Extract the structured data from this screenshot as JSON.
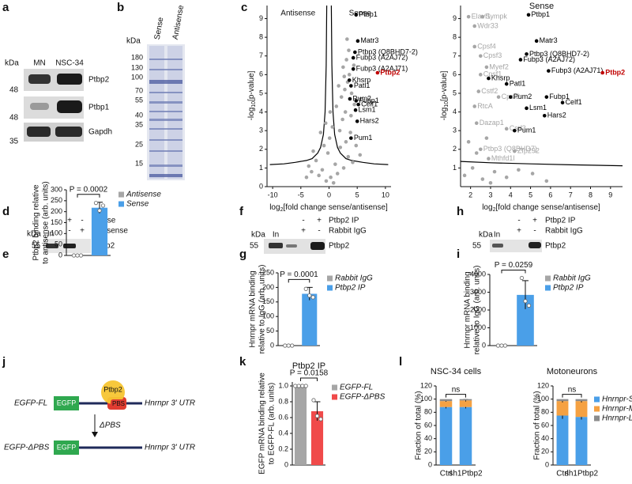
{
  "figure": {
    "letters": [
      "a",
      "b",
      "c",
      "d",
      "e",
      "f",
      "g",
      "h",
      "i",
      "j",
      "k",
      "l"
    ],
    "blot_a": {
      "kda": "kDa",
      "lanes": [
        "MN",
        "NSC-34"
      ],
      "bands": [
        "Ptbp2",
        "Ptbp1",
        "Gapdh"
      ],
      "markers": [
        "48",
        "48",
        "35"
      ]
    },
    "gel_b": {
      "kda": "kDa",
      "lanes": [
        "Sense",
        "Antisense"
      ],
      "markers": [
        "180",
        "130",
        "100",
        "70",
        "55",
        "40",
        "35",
        "25",
        "15"
      ]
    },
    "blot_d": {
      "kda": "kDa",
      "input": "In",
      "rows": [
        {
          "signs": [
            "+",
            "-"
          ],
          "label": "Sense"
        },
        {
          "signs": [
            "-",
            "+"
          ],
          "label": "Antisense"
        }
      ],
      "marker": "55",
      "band": "Ptbp2"
    },
    "blot_f": {
      "kda": "kDa",
      "input": "In",
      "rows": [
        {
          "signs": [
            "-",
            "+"
          ],
          "label": "Ptbp2 IP"
        },
        {
          "signs": [
            "+",
            "-"
          ],
          "label": "Rabbit IgG"
        }
      ],
      "marker": "55",
      "band": "Ptbp2"
    },
    "blot_h": {
      "kda": "kDa",
      "input": "In",
      "rows": [
        {
          "signs": [
            "-",
            "+"
          ],
          "label": "Ptbp2 IP"
        },
        {
          "signs": [
            "+",
            "-"
          ],
          "label": "Rabbit IgG"
        }
      ],
      "marker": "55",
      "band": "Ptbp2"
    },
    "diagram_j": {
      "full": "EGFP-FL",
      "egfp": "EGFP",
      "protein": "Ptbp2",
      "site": "PBS",
      "utr": "Hnrnpr 3' UTR",
      "deletion": "ΔPBS",
      "mutant": "EGFP-ΔPBS"
    }
  },
  "chart_data": [
    {
      "type": "scatter",
      "side_labels": [
        "Antisense",
        "Sense"
      ],
      "xlabel": [
        "log",
        "2",
        "[fold change sense/antisense]"
      ],
      "ylabel": [
        "-log",
        "10",
        "[p-value]"
      ],
      "xlim": [
        -11,
        11
      ],
      "ylim": [
        0,
        9.7
      ],
      "xticks": [
        -10,
        -5,
        0,
        5,
        10
      ],
      "yticks": [
        0,
        1,
        2,
        3,
        4,
        5,
        6,
        7,
        8,
        9
      ],
      "series": [
        {
          "color": "#a6a6a6",
          "x": [
            -0.5,
            0.3,
            -1.2,
            1.1,
            0.8,
            -0.2,
            1.5,
            2.0,
            -2.3,
            -1.8,
            2.6,
            3.0,
            -3.1,
            0.1,
            0.6,
            -0.9,
            1.9,
            2.4,
            3.4,
            -2.8,
            -3.6,
            3.8,
            4.2,
            -4.0,
            0.2,
            -0.6,
            1.3,
            2.2,
            2.8,
            3.3,
            3.6,
            4.0,
            4.5,
            2.5,
            3.1,
            3.9,
            2.9,
            3.5,
            4.4,
            3.2,
            2.7,
            4.8,
            5.5,
            -1.5,
            1.7
          ],
          "values": [
            0.3,
            0.5,
            0.9,
            1.2,
            0.2,
            1.8,
            0.7,
            2.1,
            1.4,
            0.6,
            1.0,
            2.4,
            0.8,
            2.6,
            3.2,
            2.2,
            3.0,
            3.6,
            1.6,
            1.9,
            1.1,
            2.9,
            1.3,
            0.5,
            4.0,
            3.4,
            4.3,
            4.8,
            5.2,
            5.6,
            6.0,
            5.0,
            4.4,
            6.4,
            6.8,
            3.8,
            4.0,
            7.3,
            6.5,
            7.9,
            5.9,
            2.2,
            1.7,
            2.9,
            5.4
          ]
        },
        {
          "color": "#000000",
          "x": [
            4.8,
            5.1,
            4.6,
            4.3,
            4.3,
            3.6,
            3.9,
            3.7,
            4.8,
            5.2,
            4.7,
            5.0,
            3.9
          ],
          "values": [
            9.2,
            7.8,
            7.2,
            6.9,
            6.3,
            5.7,
            5.4,
            4.7,
            4.6,
            4.4,
            4.1,
            3.5,
            2.6
          ],
          "labels": [
            "Ptbp1",
            "Matr3",
            "Ptbp3 (Q8BHD7-2)",
            "Fubp3 (A2AJ72)",
            "Fubp3 (A2AJ71)",
            "Khsrp",
            "Patl1",
            "Pum2",
            "Fubp1",
            "Celf1",
            "Lsm1",
            "Hars2",
            "Pum1"
          ]
        },
        {
          "color": "#c00000",
          "x": [
            8.6
          ],
          "values": [
            6.1
          ],
          "labels": [
            "Ptbp2"
          ]
        }
      ],
      "curves": [
        {
          "color": "#000000",
          "x": [
            -10.5,
            -8,
            -6,
            -4,
            -3,
            -2,
            -1.5,
            -1,
            -0.7,
            -0.5,
            -0.4
          ],
          "values": [
            1.18,
            1.22,
            1.3,
            1.4,
            1.5,
            1.8,
            2.1,
            2.8,
            4.0,
            6.5,
            9.7
          ]
        },
        {
          "color": "#000000",
          "x": [
            0.4,
            0.5,
            0.7,
            1,
            1.5,
            2,
            3,
            4,
            6,
            8,
            10.5
          ],
          "values": [
            9.7,
            6.5,
            4.0,
            2.8,
            2.1,
            1.8,
            1.5,
            1.4,
            1.3,
            1.22,
            1.18
          ]
        }
      ]
    },
    {
      "type": "scatter",
      "title": "Sense",
      "xlabel": [
        "log",
        "2",
        "[fold change sense/antisense]"
      ],
      "ylabel": [
        "-log",
        "10",
        "[p-value]"
      ],
      "xlim": [
        1.5,
        9.6
      ],
      "ylim": [
        0,
        9.7
      ],
      "xticks": [
        2,
        3,
        4,
        5,
        6,
        7,
        8,
        9
      ],
      "yticks": [
        1,
        2,
        3,
        4,
        5,
        6,
        7,
        8,
        9
      ],
      "series": [
        {
          "color": "#a6a6a6",
          "x": [
            1.7,
            2.1,
            2.6,
            3.2,
            3.8,
            4.4,
            5.1,
            5.8,
            2.3,
            3.0,
            1.9,
            2.8
          ],
          "values": [
            0.6,
            1.0,
            0.4,
            0.8,
            0.5,
            0.9,
            0.7,
            0.3,
            1.8,
            0.2,
            2.4,
            2.6
          ]
        },
        {
          "color": "#a6a6a6",
          "x": [
            1.9,
            2.6,
            2.2,
            2.2,
            2.5,
            2.8,
            2.5,
            2.4,
            3.4,
            2.2,
            2.3,
            3.8,
            2.5,
            4.2,
            2.9
          ],
          "values": [
            9.1,
            9.1,
            8.6,
            7.5,
            7.0,
            6.4,
            6.0,
            5.1,
            4.8,
            4.3,
            3.4,
            3.1,
            2.0,
            1.9,
            1.5
          ],
          "labels": [
            "Elavl1",
            "Sympk",
            "Wdr33",
            "Cpsf4",
            "Cpsf3",
            "Myef2",
            "Cpsf1",
            "Cstf2",
            "Cpsf2",
            "RtcA",
            "Dazap1",
            "Cstf3",
            "Ptbp3 (Q8BHD7)",
            "Zfp292",
            "Mthfd1l"
          ]
        },
        {
          "color": "#000000",
          "x": [
            4.9,
            5.3,
            4.8,
            4.5,
            5.9,
            2.9,
            3.8,
            4.0,
            5.8,
            6.6,
            4.8,
            5.7,
            4.2
          ],
          "values": [
            9.2,
            7.8,
            7.1,
            6.8,
            6.2,
            5.8,
            5.5,
            4.8,
            4.8,
            4.5,
            4.2,
            3.8,
            3.0
          ],
          "labels": [
            "Ptbp1",
            "Matr3",
            "Ptbp3 (Q8BHD7-2)",
            "Fubp3 (A2AJ72)",
            "Fubp3 (A2AJ71)",
            "Khsrp",
            "Patl1",
            "Pum2",
            "Fubp1",
            "Celf1",
            "Lsm1",
            "Hars2",
            "Pum1"
          ]
        },
        {
          "color": "#c00000",
          "x": [
            8.6
          ],
          "values": [
            6.1
          ],
          "labels": [
            "Ptbp2"
          ]
        }
      ],
      "curves": [
        {
          "color": "#000000",
          "x": [
            1.5,
            3,
            5,
            7,
            9.6
          ],
          "values": [
            1.35,
            1.28,
            1.22,
            1.17,
            1.12
          ]
        }
      ]
    },
    {
      "type": "bar",
      "ylabel": [
        "Ptbp2 binding relative",
        "to antisense (arb. units)"
      ],
      "annotation": "P = 0.0002",
      "ylim": [
        0,
        300
      ],
      "yticks": [
        0,
        50,
        100,
        150,
        200,
        250,
        300
      ],
      "series": [
        {
          "name": "Antisense",
          "color": "#a6a6a6",
          "values": [
            0
          ],
          "points": [
            0,
            0,
            0
          ]
        },
        {
          "name": "Sense",
          "color": "#4a9fe8",
          "values": [
            218
          ],
          "errors": [
            25
          ],
          "points": [
            240,
            205,
            228
          ]
        }
      ]
    },
    {
      "type": "bar",
      "ylabel": [
        "Hnrnpr mRNA binding",
        "relative to IgG (arb. units)"
      ],
      "annotation": "P = 0.0001",
      "ylim": [
        0,
        250
      ],
      "yticks": [
        0,
        50,
        100,
        150,
        200,
        250
      ],
      "series": [
        {
          "name": "Rabbit IgG",
          "color": "#a6a6a6",
          "values": [
            0
          ],
          "points": [
            0,
            0,
            0
          ]
        },
        {
          "name": "Ptbp2 IP",
          "color": "#4a9fe8",
          "values": [
            178
          ],
          "errors": [
            22
          ],
          "points": [
            195,
            172,
            166
          ]
        }
      ]
    },
    {
      "type": "bar",
      "ylabel": [
        "Hnrnpr mRNA binding",
        "relative to IgG (arb. units)"
      ],
      "annotation": "P = 0.0259",
      "ylim": [
        0,
        4000
      ],
      "yticks": [
        0,
        1000,
        2000,
        3000,
        4000
      ],
      "series": [
        {
          "name": "Rabbit IgG",
          "color": "#a6a6a6",
          "values": [
            0
          ],
          "points": [
            0,
            0,
            0
          ]
        },
        {
          "name": "Ptbp2 IP",
          "color": "#4a9fe8",
          "values": [
            2850
          ],
          "errors": [
            800
          ],
          "points": [
            3800,
            2500,
            2250
          ]
        }
      ]
    },
    {
      "type": "bar",
      "title": "Ptbp2 IP",
      "ylabel": [
        "EGFP mRNA binding relative",
        "to EGFP-FL (arb. units)"
      ],
      "annotation": "P = 0.0158",
      "ylim": [
        0,
        1.05
      ],
      "yticks": [
        0,
        0.2,
        0.4,
        0.6,
        0.8,
        {
          "value": 1,
          "label": "1.0"
        }
      ],
      "series": [
        {
          "name": "EGFP-FL",
          "color": "#a6a6a6",
          "values": [
            1
          ],
          "points": [
            1,
            1,
            1,
            1
          ]
        },
        {
          "name": "EGFP-ΔPBS",
          "color": "#f04a4a",
          "values": [
            0.68
          ],
          "errors": [
            0.12
          ],
          "points": [
            0.82,
            0.62,
            0.58
          ]
        }
      ]
    },
    {
      "type": "stacked_bar",
      "title": "NSC-34 cells",
      "ylabel": "Fraction of total (%)",
      "annotation": "ns",
      "ylim": [
        0,
        120
      ],
      "yticks": [
        0,
        20,
        40,
        60,
        80,
        100,
        120
      ],
      "categories": [
        "Ctrl",
        "sh1Ptbp2"
      ],
      "series": [
        {
          "color": "#4a9fe8",
          "values": [
            88,
            88
          ],
          "errors": [
            2,
            2
          ]
        },
        {
          "color": "#f5a142",
          "values": [
            9,
            10
          ],
          "errors": [
            1,
            1.5
          ]
        },
        {
          "color": "#8c8c8c",
          "values": [
            3,
            2
          ]
        }
      ]
    },
    {
      "type": "stacked_bar",
      "title": "Motoneurons",
      "ylabel": "Fraction of total (%)",
      "annotation": "ns",
      "ylim": [
        0,
        120
      ],
      "yticks": [
        0,
        20,
        40,
        60,
        80,
        100,
        120
      ],
      "categories": [
        "Ctrl",
        "sh1Ptbp2"
      ],
      "series": [
        {
          "name": "Hnrnpr-S",
          "color": "#4a9fe8",
          "values": [
            75,
            73
          ],
          "errors": [
            5,
            4
          ]
        },
        {
          "name": "Hnrnpr-M",
          "color": "#f5a142",
          "values": [
            22,
            24
          ],
          "errors": [
            2,
            2
          ]
        },
        {
          "name": "Hnrnpr-L",
          "color": "#8c8c8c",
          "values": [
            3,
            3
          ]
        }
      ]
    }
  ]
}
